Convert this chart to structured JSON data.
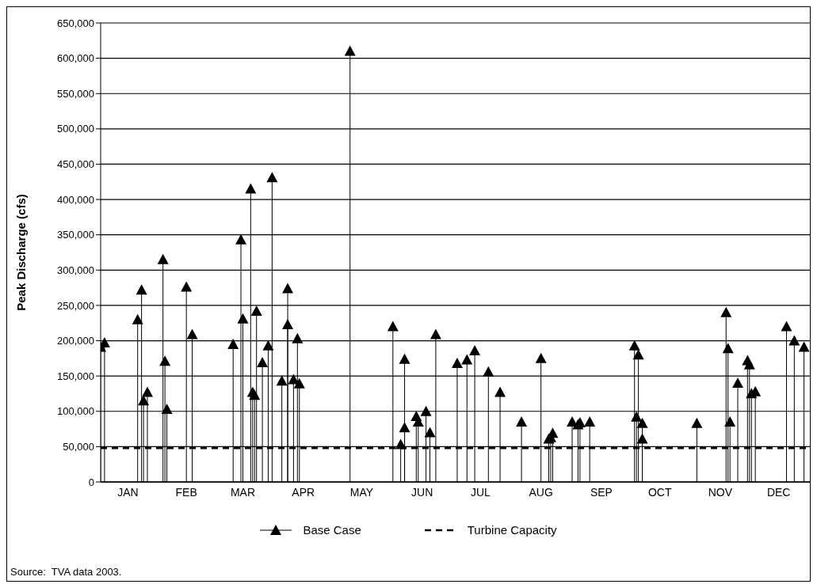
{
  "chart_data": {
    "type": "lollipop",
    "ylabel": "Peak Discharge (cfs)",
    "xlim": [
      "--01-01",
      "--12-31"
    ],
    "xticks": [
      {
        "value": "--01-15",
        "label": "JAN"
      },
      {
        "value": "--02-14",
        "label": "FEB"
      },
      {
        "value": "--03-15",
        "label": "MAR"
      },
      {
        "value": "--04-15",
        "label": "APR"
      },
      {
        "value": "--05-15",
        "label": "MAY"
      },
      {
        "value": "--06-15",
        "label": "JUN"
      },
      {
        "value": "--07-15",
        "label": "JUL"
      },
      {
        "value": "--08-15",
        "label": "AUG"
      },
      {
        "value": "--09-15",
        "label": "SEP"
      },
      {
        "value": "--10-15",
        "label": "OCT"
      },
      {
        "value": "--11-15",
        "label": "NOV"
      },
      {
        "value": "--12-15",
        "label": "DEC"
      }
    ],
    "ylim": [
      0,
      650000
    ],
    "yticks": [
      0,
      {
        "value": 50000,
        "label": "50,000"
      },
      {
        "value": 100000,
        "label": "100,000"
      },
      {
        "value": 150000,
        "label": "150,000"
      },
      {
        "value": 200000,
        "label": "200,000"
      },
      {
        "value": 250000,
        "label": "250,000"
      },
      {
        "value": 300000,
        "label": "300,000"
      },
      {
        "value": 350000,
        "label": "350,000"
      },
      {
        "value": 400000,
        "label": "400,000"
      },
      {
        "value": 450000,
        "label": "450,000"
      },
      {
        "value": 500000,
        "label": "500,000"
      },
      {
        "value": 550000,
        "label": "550,000"
      },
      {
        "value": 600000,
        "label": "600,000"
      },
      {
        "value": 650000,
        "label": "650,000"
      }
    ],
    "grid": "y",
    "legend": "bottom",
    "series": [
      {
        "name": "Base Case",
        "color": "#000000",
        "marker": "triangle",
        "x": [
          "--01-01",
          "--01-03",
          "--01-20",
          "--01-22",
          "--01-23",
          "--01-25",
          "--02-02",
          "--02-03",
          "--02-04",
          "--02-14",
          "--02-17",
          "--03-10",
          "--03-14",
          "--03-15",
          "--03-19",
          "--03-20",
          "--03-21",
          "--03-22",
          "--03-25",
          "--03-28",
          "--03-30",
          "--04-04",
          "--04-07",
          "--04-07",
          "--04-10",
          "--04-12",
          "--04-13",
          "--05-09",
          "--05-31",
          "--06-04",
          "--06-06",
          "--06-06",
          "--06-12",
          "--06-13",
          "--06-17",
          "--06-19",
          "--06-22",
          "--07-03",
          "--07-08",
          "--07-12",
          "--07-19",
          "--07-25",
          "--08-05",
          "--08-15",
          "--08-19",
          "--08-20",
          "--08-21",
          "--08-31",
          "--09-03",
          "--09-04",
          "--09-09",
          "--10-02",
          "--10-03",
          "--10-04",
          "--10-06",
          "--10-06",
          "--11-03",
          "--11-18",
          "--11-19",
          "--11-20",
          "--11-24",
          "--11-29",
          "--11-30",
          "--12-01",
          "--12-03",
          "--12-19",
          "--12-23",
          "--12-28"
        ],
        "values": [
          190000,
          196000,
          229000,
          271000,
          114000,
          126000,
          314000,
          170000,
          102000,
          275000,
          208000,
          194000,
          342000,
          230000,
          414000,
          126000,
          122000,
          241000,
          168000,
          192000,
          430000,
          142000,
          273000,
          222000,
          144000,
          202000,
          138000,
          609000,
          219000,
          52000,
          76000,
          173000,
          92000,
          84000,
          99000,
          69000,
          208000,
          167000,
          172000,
          185000,
          155000,
          126000,
          84000,
          174000,
          60000,
          62000,
          68000,
          84000,
          80000,
          83000,
          84000,
          192000,
          91000,
          179000,
          82000,
          60000,
          82000,
          239000,
          188000,
          84000,
          139000,
          171000,
          165000,
          124000,
          127000,
          219000,
          199000,
          190000
        ]
      },
      {
        "name": "Turbine Capacity",
        "type": "line",
        "line_style": "dashed",
        "color": "#000000",
        "x": [
          "--01-01",
          "--12-31"
        ],
        "values": [
          48000,
          48000
        ]
      }
    ],
    "annotations": [
      "Source:  TVA data 2003."
    ]
  }
}
